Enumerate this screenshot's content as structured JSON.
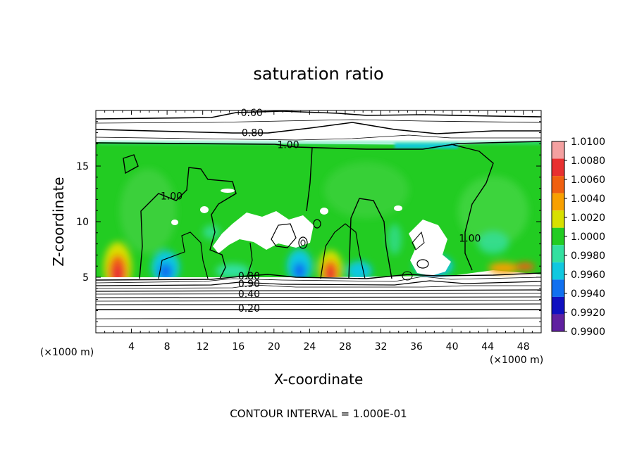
{
  "chart_data": {
    "type": "heatmap",
    "title": "saturation ratio",
    "xlabel": "X-coordinate",
    "ylabel": "Z-coordinate",
    "x_unit_left": "(×1000 m)",
    "x_unit_right": "(×1000 m)",
    "footer": "CONTOUR INTERVAL = 1.000E-01",
    "xlim": [
      0,
      50
    ],
    "ylim": [
      0,
      20
    ],
    "x_ticks": [
      4,
      8,
      12,
      16,
      20,
      24,
      28,
      32,
      36,
      40,
      44,
      48
    ],
    "x_tick_labels": [
      "4",
      "8",
      "12",
      "16",
      "20",
      "24",
      "28",
      "32",
      "36",
      "40",
      "44",
      "48"
    ],
    "y_ticks": [
      5,
      10,
      15
    ],
    "y_tick_labels": [
      "5",
      "10",
      "15"
    ],
    "colorbar": {
      "levels": [
        "1.0100",
        "1.0080",
        "1.0060",
        "1.0040",
        "1.0020",
        "1.0000",
        "0.9980",
        "0.9960",
        "0.9940",
        "0.9920",
        "0.9900"
      ],
      "colors": [
        "#f4a0a0",
        "#e83030",
        "#f06010",
        "#f8a000",
        "#d8e000",
        "#22cc22",
        "#33e0a0",
        "#10c8e0",
        "#1070f0",
        "#1010c0",
        "#6020a0"
      ]
    },
    "contour_labels": [
      {
        "text": "0.60",
        "x": 17.5,
        "z": 19.5
      },
      {
        "text": "0.80",
        "x": 17.6,
        "z": 17.7
      },
      {
        "text": "1.00",
        "x": 21.6,
        "z": 16.6
      },
      {
        "text": "1.00",
        "x": 8.5,
        "z": 12.0
      },
      {
        "text": "1.00",
        "x": 42.0,
        "z": 8.2
      },
      {
        "text": "0.80",
        "x": 17.2,
        "z": 4.8
      },
      {
        "text": "0.90",
        "x": 17.2,
        "z": 4.1
      },
      {
        "text": "0.40",
        "x": 17.2,
        "z": 3.2
      },
      {
        "text": "0.20",
        "x": 17.2,
        "z": 1.9
      }
    ]
  }
}
